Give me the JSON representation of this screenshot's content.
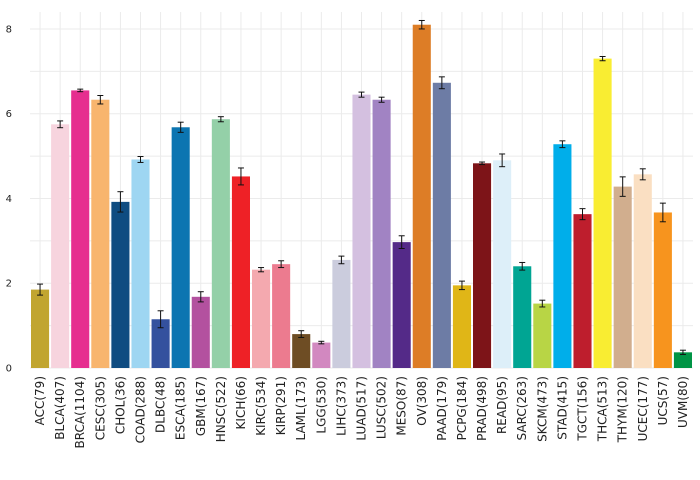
{
  "chart_data": {
    "type": "bar",
    "title": "",
    "xlabel": "",
    "ylabel": "",
    "ylim": [
      0,
      8.4
    ],
    "yticks": [
      0,
      2,
      4,
      6,
      8
    ],
    "grid": true,
    "categories": [
      "ACC(79)",
      "BLCA(407)",
      "BRCA(1104)",
      "CESC(305)",
      "CHOL(36)",
      "COAD(288)",
      "DLBC(48)",
      "ESCA(185)",
      "GBM(167)",
      "HNSC(522)",
      "KICH(66)",
      "KIRC(534)",
      "KIRP(291)",
      "LAML(173)",
      "LGG(530)",
      "LIHC(373)",
      "LUAD(517)",
      "LUSC(502)",
      "MESO(87)",
      "OV(308)",
      "PAAD(179)",
      "PCPG(184)",
      "PRAD(498)",
      "READ(95)",
      "SARC(263)",
      "SKCM(473)",
      "STAD(415)",
      "TGCT(156)",
      "THCA(513)",
      "THYM(120)",
      "UCEC(177)",
      "UCS(57)",
      "UVM(80)"
    ],
    "values": [
      1.85,
      5.75,
      6.55,
      6.33,
      3.92,
      4.92,
      1.15,
      5.68,
      1.68,
      5.87,
      4.52,
      2.32,
      2.45,
      0.8,
      0.6,
      2.55,
      6.45,
      6.33,
      2.97,
      8.1,
      6.73,
      1.95,
      4.83,
      4.9,
      2.4,
      1.52,
      5.28,
      3.63,
      7.3,
      4.28,
      4.57,
      3.67,
      0.37
    ],
    "errors": [
      0.13,
      0.08,
      0.03,
      0.1,
      0.24,
      0.07,
      0.2,
      0.12,
      0.12,
      0.06,
      0.2,
      0.05,
      0.08,
      0.08,
      0.03,
      0.09,
      0.06,
      0.06,
      0.15,
      0.1,
      0.14,
      0.1,
      0.03,
      0.15,
      0.09,
      0.08,
      0.08,
      0.13,
      0.05,
      0.23,
      0.13,
      0.22,
      0.05
    ],
    "colors": [
      "#C1A530",
      "#F7D4DE",
      "#E62E8F",
      "#F8B56E",
      "#0F4C81",
      "#9ED6F2",
      "#34519E",
      "#0C75B1",
      "#B3519F",
      "#94D0A8",
      "#EE2126",
      "#F4A9AF",
      "#EC7B8F",
      "#6E4D24",
      "#D288C0",
      "#CBCCDD",
      "#D4C0E0",
      "#A183C3",
      "#542A88",
      "#DD7D26",
      "#6D7CA5",
      "#E0B617",
      "#7D1418",
      "#DDEFF9",
      "#00A593",
      "#B8D545",
      "#00AEEA",
      "#BE1E2D",
      "#F9ED32",
      "#D1AE8E",
      "#FADFC2",
      "#F7941E",
      "#009445"
    ]
  }
}
